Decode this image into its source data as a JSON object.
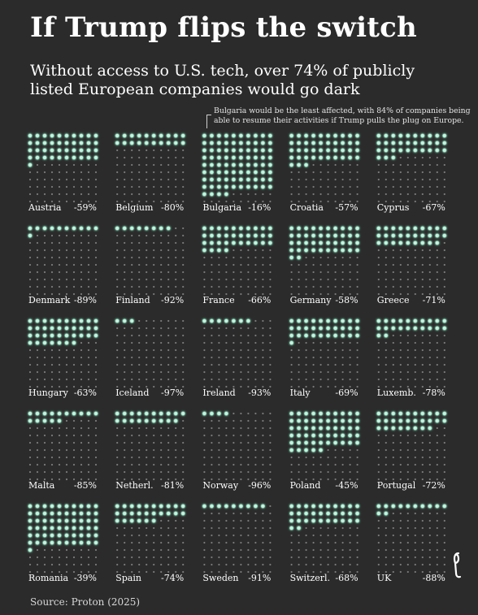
{
  "title": "If Trump flips the switch",
  "subtitle": "Without access to U.S. tech, over 74% of publicly listed European companies would go dark",
  "annotation": "Bulgaria would be the least affected, with 84% of companies being able to resume their activities if Trump pulls the plug on Europe.",
  "source": "Source: Proton (2025)",
  "colors": {
    "background": "#2b2b2b",
    "lit_dot": "#cdf0e2",
    "lit_glow": "#5fd6a8",
    "dark_dot": "#7a7a7a",
    "text": "#ffffff"
  },
  "chart_data": {
    "type": "waffle",
    "rows": 10,
    "cols": 10,
    "series": [
      {
        "country": "Austria",
        "label": "-59%",
        "value": -59
      },
      {
        "country": "Belgium",
        "label": "-80%",
        "value": -80
      },
      {
        "country": "Bulgaria",
        "label": "-16%",
        "value": -16
      },
      {
        "country": "Croatia",
        "label": "-57%",
        "value": -57
      },
      {
        "country": "Cyprus",
        "label": "-67%",
        "value": -67
      },
      {
        "country": "Denmark",
        "label": "-89%",
        "value": -89
      },
      {
        "country": "Finland",
        "label": "-92%",
        "value": -92
      },
      {
        "country": "France",
        "label": "-66%",
        "value": -66
      },
      {
        "country": "Germany",
        "label": "-58%",
        "value": -58
      },
      {
        "country": "Greece",
        "label": "-71%",
        "value": -71
      },
      {
        "country": "Hungary",
        "label": "-63%",
        "value": -63
      },
      {
        "country": "Iceland",
        "label": "-97%",
        "value": -97
      },
      {
        "country": "Ireland",
        "label": "-93%",
        "value": -93
      },
      {
        "country": "Italy",
        "label": "-69%",
        "value": -69
      },
      {
        "country": "Luxemb.",
        "label": "-78%",
        "value": -78
      },
      {
        "country": "Malta",
        "label": "-85%",
        "value": -85
      },
      {
        "country": "Netherl.",
        "label": "-81%",
        "value": -81
      },
      {
        "country": "Norway",
        "label": "-96%",
        "value": -96
      },
      {
        "country": "Poland",
        "label": "-45%",
        "value": -45
      },
      {
        "country": "Portugal",
        "label": "-72%",
        "value": -72
      },
      {
        "country": "Romania",
        "label": "-39%",
        "value": -39
      },
      {
        "country": "Spain",
        "label": "-74%",
        "value": -74
      },
      {
        "country": "Sweden",
        "label": "-91%",
        "value": -91
      },
      {
        "country": "Switzerl.",
        "label": "-68%",
        "value": -68
      },
      {
        "country": "UK",
        "label": "-88%",
        "value": -88
      }
    ]
  }
}
